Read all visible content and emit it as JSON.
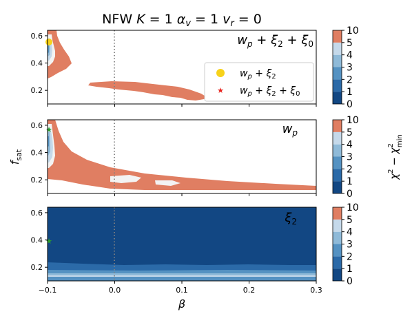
{
  "title": "NFW  K = 1  α_v = 1  v_r = 0",
  "title_parts": {
    "prefix": "NFW  ",
    "k": "K",
    "k_val": " = 1  ",
    "alpha": "α",
    "alpha_sub": "v",
    "alpha_val": " = 1  ",
    "v": "v",
    "v_sub": "r",
    "v_val": " = 0"
  },
  "xlabel": "β",
  "ylabel": "f_sat",
  "ylabel_parts": {
    "main": "f",
    "sub": "sat"
  },
  "colorbar_label": "χ² − χ²_min",
  "colorbar_ticks": [
    "0",
    "1",
    "2",
    "3",
    "4",
    "5",
    "10"
  ],
  "colorbar_colors": [
    "#124783",
    "#2b6aa8",
    "#5592c2",
    "#8fbad8",
    "#c5d9ea",
    "#f3f3f3",
    "#e07e62"
  ],
  "x_ticks": [
    "−0.1",
    "0.0",
    "0.1",
    "0.2",
    "0.3"
  ],
  "y_ticks": [
    "0.2",
    "0.4",
    "0.6"
  ],
  "legend": {
    "entries": [
      {
        "label": "w_p + ξ_2",
        "color": "#f7d21a",
        "marker": "circle"
      },
      {
        "label": "w_p + ξ_2 + ξ_0",
        "color": "#e8211b",
        "marker": "star"
      }
    ]
  },
  "chart_data": [
    {
      "type": "heatmap",
      "panel_label": "w_p + ξ_2 + ξ_0",
      "xlim": [
        -0.1,
        0.3
      ],
      "ylim": [
        0.1,
        0.64
      ],
      "vline_x": 0.0,
      "best_fit_points": [
        {
          "x": -0.1,
          "y": 0.56,
          "color": "#f7d21a",
          "marker": "circle"
        }
      ],
      "levels": [
        0,
        1,
        2,
        3,
        4,
        5,
        10
      ]
    },
    {
      "type": "heatmap",
      "panel_label": "w_p",
      "xlim": [
        -0.1,
        0.3
      ],
      "ylim": [
        0.1,
        0.64
      ],
      "vline_x": 0.0,
      "best_fit_points": [
        {
          "x": -0.1,
          "y": 0.56,
          "color": "#2ca02c",
          "marker": "star"
        }
      ],
      "levels": [
        0,
        1,
        2,
        3,
        4,
        5,
        10
      ]
    },
    {
      "type": "heatmap",
      "panel_label": "ξ_2",
      "xlim": [
        -0.1,
        0.3
      ],
      "ylim": [
        0.1,
        0.64
      ],
      "vline_x": 0.0,
      "best_fit_points": [
        {
          "x": -0.1,
          "y": 0.4,
          "color": "#2ca02c",
          "marker": "star"
        }
      ],
      "levels": [
        0,
        1,
        2,
        3,
        4,
        5,
        10
      ]
    }
  ]
}
